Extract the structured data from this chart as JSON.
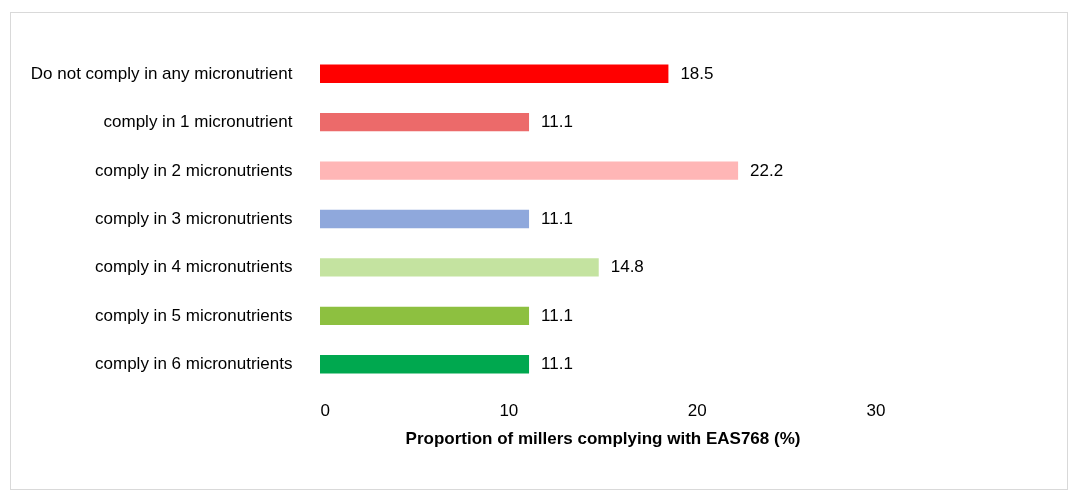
{
  "chart_data": {
    "type": "bar",
    "orientation": "horizontal",
    "xlabel": "Proportion of millers complying with EAS768 (%)",
    "categories": [
      "Do not comply in any micronutrient",
      "comply in 1 micronutrient",
      "comply in 2 micronutrients",
      "comply in 3 micronutrients",
      "comply in 4 micronutrients",
      "comply in 5 micronutrients",
      "comply in 6 micronutrients"
    ],
    "values": [
      18.5,
      11.1,
      22.2,
      11.1,
      14.8,
      11.1,
      11.1
    ],
    "colors": [
      "#ff0000",
      "#ec6a6a",
      "#ffb6b6",
      "#8fa8dc",
      "#c4e3a0",
      "#8dc040",
      "#00a84f"
    ],
    "xlim": [
      0,
      30
    ],
    "xticks": [
      0,
      10,
      20,
      30
    ],
    "grid": false,
    "data_labels": true
  }
}
